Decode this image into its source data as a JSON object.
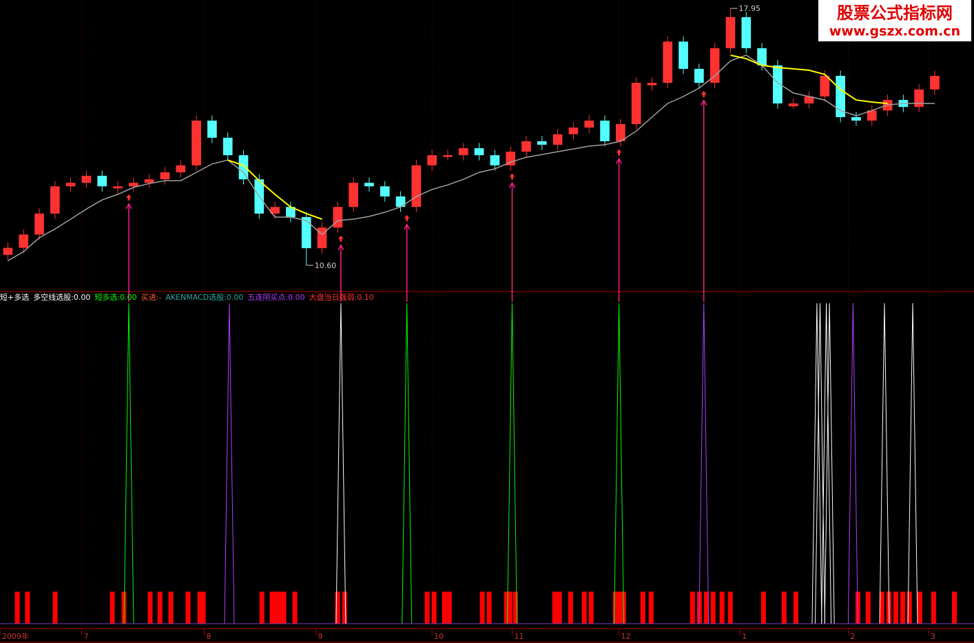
{
  "chart_data": {
    "type": "candlestick",
    "watermark": {
      "title": "股票公式指标网",
      "url": "www.gszx.com.cn"
    },
    "up_color": "#ff3232",
    "down_color": "#54ffff",
    "ylim": [
      9.87,
      18.19
    ],
    "xlim": [
      0,
      62
    ],
    "xticks": [
      {
        "value": 0,
        "label": "2009年"
      },
      {
        "value": 5.2,
        "label": "7"
      },
      {
        "value": 13.0,
        "label": "8"
      },
      {
        "value": 20.1,
        "label": "9"
      },
      {
        "value": 27.5,
        "label": "10"
      },
      {
        "value": 32.6,
        "label": "11"
      },
      {
        "value": 39.4,
        "label": "12"
      },
      {
        "value": 47.1,
        "label": "1"
      },
      {
        "value": 54.0,
        "label": "2"
      },
      {
        "value": 59.1,
        "label": "3"
      }
    ],
    "candles": [
      [
        10.9,
        11.25,
        10.75,
        11.1
      ],
      [
        11.1,
        11.63,
        10.95,
        11.48
      ],
      [
        11.48,
        12.23,
        11.33,
        12.08
      ],
      [
        12.08,
        13.01,
        11.93,
        12.86
      ],
      [
        12.86,
        13.11,
        12.71,
        12.96
      ],
      [
        12.96,
        13.31,
        12.81,
        13.16
      ],
      [
        13.16,
        13.31,
        12.71,
        12.86
      ],
      [
        12.8,
        13.01,
        12.65,
        12.86
      ],
      [
        12.86,
        13.11,
        12.71,
        12.96
      ],
      [
        12.96,
        13.21,
        12.81,
        13.06
      ],
      [
        13.06,
        13.41,
        12.91,
        13.26
      ],
      [
        13.26,
        13.61,
        13.11,
        13.46
      ],
      [
        13.46,
        14.89,
        13.31,
        14.74
      ],
      [
        14.74,
        14.89,
        14.1,
        14.25
      ],
      [
        14.25,
        14.4,
        13.6,
        13.75
      ],
      [
        13.75,
        13.9,
        12.91,
        13.06
      ],
      [
        13.06,
        13.21,
        11.93,
        12.08
      ],
      [
        12.08,
        12.42,
        11.93,
        12.27
      ],
      [
        12.27,
        12.42,
        11.83,
        11.98
      ],
      [
        11.98,
        12.13,
        10.6,
        11.09
      ],
      [
        11.09,
        11.83,
        10.94,
        11.68
      ],
      [
        11.68,
        12.42,
        11.53,
        12.27
      ],
      [
        12.27,
        13.11,
        12.12,
        12.96
      ],
      [
        12.96,
        13.11,
        12.71,
        12.86
      ],
      [
        12.86,
        13.01,
        12.42,
        12.57
      ],
      [
        12.57,
        12.72,
        12.12,
        12.27
      ],
      [
        12.27,
        13.61,
        12.12,
        13.46
      ],
      [
        13.46,
        13.9,
        13.31,
        13.75
      ],
      [
        13.7,
        13.9,
        13.6,
        13.75
      ],
      [
        13.75,
        14.1,
        13.6,
        13.95
      ],
      [
        13.95,
        14.1,
        13.6,
        13.75
      ],
      [
        13.75,
        13.9,
        13.31,
        13.46
      ],
      [
        13.46,
        14.0,
        13.31,
        13.85
      ],
      [
        13.85,
        14.3,
        13.7,
        14.15
      ],
      [
        14.15,
        14.3,
        13.9,
        14.05
      ],
      [
        14.05,
        14.5,
        13.9,
        14.35
      ],
      [
        14.35,
        14.69,
        14.2,
        14.54
      ],
      [
        14.54,
        14.89,
        14.39,
        14.74
      ],
      [
        14.74,
        14.89,
        14.0,
        14.15
      ],
      [
        14.15,
        14.79,
        14.0,
        14.64
      ],
      [
        14.64,
        15.97,
        14.49,
        15.82
      ],
      [
        15.75,
        15.97,
        15.6,
        15.82
      ],
      [
        15.82,
        17.15,
        15.67,
        17.0
      ],
      [
        17.0,
        17.15,
        16.07,
        16.22
      ],
      [
        16.22,
        16.37,
        15.67,
        15.82
      ],
      [
        15.82,
        16.96,
        15.67,
        16.81
      ],
      [
        16.81,
        17.95,
        16.66,
        17.7
      ],
      [
        17.7,
        17.85,
        16.66,
        16.81
      ],
      [
        16.81,
        16.96,
        16.17,
        16.32
      ],
      [
        16.32,
        16.47,
        15.08,
        15.23
      ],
      [
        15.15,
        15.38,
        15.08,
        15.23
      ],
      [
        15.23,
        15.58,
        15.08,
        15.43
      ],
      [
        15.43,
        16.17,
        15.28,
        16.02
      ],
      [
        16.02,
        16.17,
        14.69,
        14.84
      ],
      [
        14.84,
        14.99,
        14.59,
        14.74
      ],
      [
        14.74,
        15.18,
        14.59,
        15.03
      ],
      [
        15.03,
        15.48,
        14.88,
        15.33
      ],
      [
        15.33,
        15.48,
        14.98,
        15.13
      ],
      [
        15.13,
        15.78,
        14.98,
        15.63
      ],
      [
        15.63,
        16.17,
        15.48,
        16.02
      ]
    ],
    "extreme_labels": {
      "high": "17.95",
      "low": "10.60"
    },
    "ma": {
      "color": "#a0a0a0",
      "values": [
        10.73,
        10.99,
        11.39,
        11.64,
        11.92,
        12.21,
        12.47,
        12.63,
        12.83,
        12.94,
        13.02,
        13.02,
        13.26,
        13.5,
        13.61,
        13.26,
        12.57,
        11.98,
        11.98,
        11.88,
        11.48,
        11.88,
        11.92,
        12.0,
        12.12,
        12.27,
        12.57,
        12.77,
        12.9,
        13.06,
        13.26,
        13.36,
        13.55,
        13.69,
        13.77,
        13.85,
        13.93,
        14.01,
        14.05,
        14.15,
        14.44,
        14.84,
        15.23,
        15.43,
        15.67,
        16.02,
        16.45,
        16.61,
        16.32,
        15.82,
        15.53,
        15.43,
        15.33,
        15.03,
        14.88,
        15.03,
        15.19,
        15.23,
        15.23,
        15.23
      ]
    },
    "ma2": {
      "color": "#ffff00",
      "values": [
        null,
        null,
        null,
        null,
        null,
        null,
        null,
        null,
        null,
        null,
        null,
        null,
        null,
        null,
        13.61,
        13.46,
        13.02,
        12.63,
        12.27,
        12.08,
        11.92,
        null,
        null,
        null,
        null,
        null,
        null,
        null,
        null,
        null,
        null,
        null,
        null,
        null,
        null,
        null,
        null,
        null,
        null,
        null,
        null,
        null,
        null,
        null,
        null,
        null,
        16.61,
        16.51,
        16.32,
        16.26,
        16.22,
        16.18,
        16.06,
        15.63,
        15.33,
        15.27,
        15.23,
        null,
        null,
        null
      ]
    },
    "signals": {
      "color": "#ff1e8c",
      "x": [
        8.2,
        21.7,
        25.9,
        32.6,
        39.4,
        44.8
      ]
    },
    "indicator": {
      "legend": [
        {
          "text": "短+多选",
          "color": "#ffffff"
        },
        {
          "text": "多空线选股:0.00",
          "color": "#ffffff"
        },
        {
          "text": "短多选:0.00",
          "color": "#00ff00"
        },
        {
          "text": "买进:-",
          "color": "#ff5a3c"
        },
        {
          "text": "AKENMACD选股:0.00",
          "color": "#2ea8a0"
        },
        {
          "text": "五连阴买点:0.00",
          "color": "#b040ff"
        },
        {
          "text": "大盘当日强弱:0.10",
          "color": "#ff3232"
        }
      ],
      "ylim": [
        0,
        1
      ],
      "spikes": [
        {
          "color": "#00ff00",
          "x": [
            8.2,
            25.9,
            32.6,
            39.4
          ],
          "values": [
            1,
            1,
            1,
            1
          ]
        },
        {
          "color": "#b040ff",
          "x": [
            14.6,
            44.8,
            54.3
          ],
          "values": [
            1,
            1,
            1
          ]
        },
        {
          "color": "#ffffff",
          "x": [
            21.7,
            52.0,
            52.2,
            52.6,
            52.8,
            56.3,
            58.1
          ],
          "values": [
            1,
            1,
            1,
            1,
            1,
            1,
            1
          ]
        }
      ],
      "bars": {
        "color": "#ff0000",
        "x": [
          1.1,
          1.75,
          3.51,
          7.15,
          7.89,
          9.56,
          10.18,
          10.88,
          11.97,
          12.72,
          12.94,
          16.67,
          17.32,
          17.54,
          17.76,
          18.07,
          18.77,
          21.49,
          21.93,
          27.19,
          27.63,
          28.29,
          28.6,
          30.7,
          31.14,
          32.24,
          32.46,
          32.81,
          35.31,
          35.61,
          36.32,
          37.19,
          37.63,
          39.17,
          39.47,
          39.69,
          40.92,
          41.45,
          44.08,
          44.52,
          44.96,
          45.39,
          45.96,
          46.49,
          48.6,
          49.91,
          50.66,
          54.61,
          55.26,
          56.14,
          56.58,
          57.02,
          57.46,
          57.89,
          58.55,
          59.43,
          60.75
        ],
        "values": [
          0.1,
          0.1,
          0.1,
          0.1,
          0.1,
          0.1,
          0.1,
          0.1,
          0.1,
          0.1,
          0.1,
          0.1,
          0.1,
          0.1,
          0.1,
          0.1,
          0.1,
          0.1,
          0.1,
          0.1,
          0.1,
          0.1,
          0.1,
          0.1,
          0.1,
          0.1,
          0.1,
          0.1,
          0.1,
          0.1,
          0.1,
          0.1,
          0.1,
          0.1,
          0.1,
          0.1,
          0.1,
          0.1,
          0.1,
          0.1,
          0.1,
          0.1,
          0.1,
          0.1,
          0.1,
          0.1,
          0.1,
          0.1,
          0.1,
          0.1,
          0.1,
          0.1,
          0.1,
          0.1,
          0.1,
          0.1,
          0.1
        ]
      }
    }
  }
}
